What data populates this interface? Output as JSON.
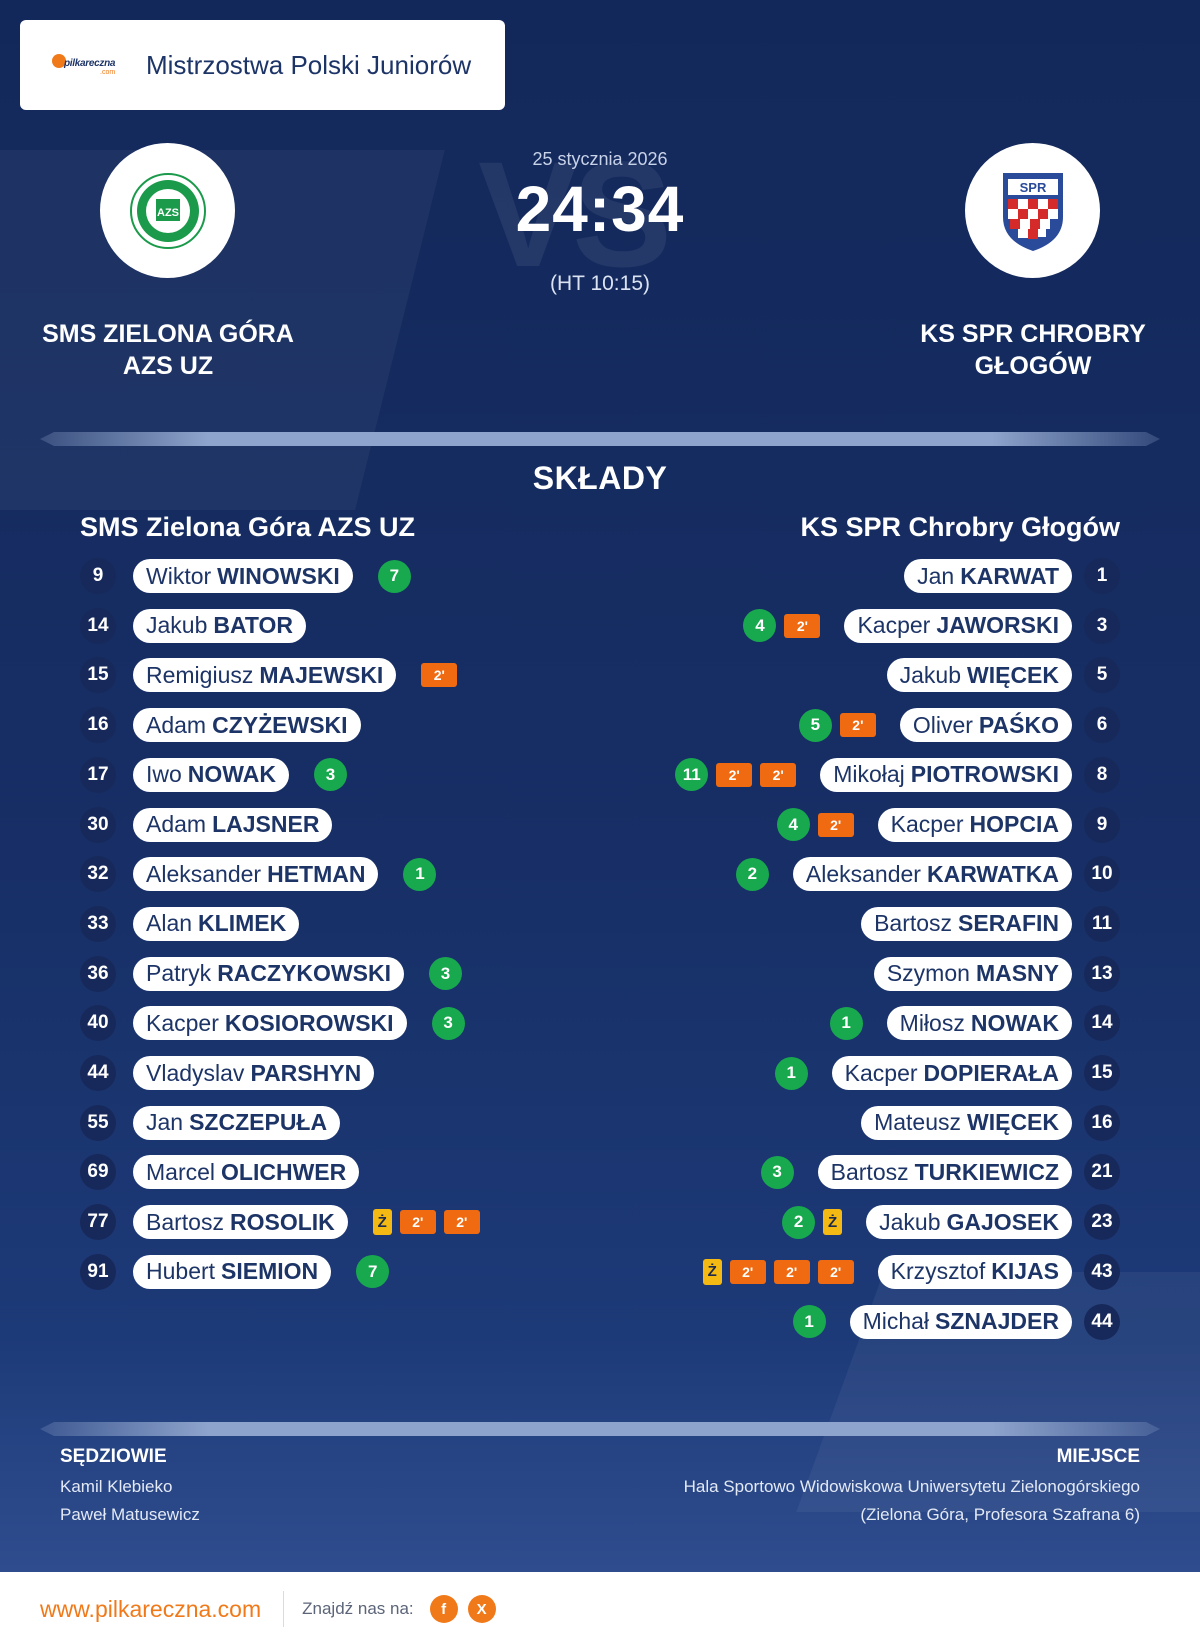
{
  "header": {
    "competition": "Mistrzostwa Polski Juniorów",
    "logo_text": "pilkareczna",
    "logo_sub": ".com"
  },
  "match": {
    "date": "25 stycznia 2026",
    "score": "24:34",
    "halftime": "(HT 10:15)",
    "vs": "VS"
  },
  "home": {
    "name_line1": "SMS ZIELONA GÓRA",
    "name_line2": "AZS UZ",
    "logo_text": "AZS",
    "roster_title": "SMS Zielona Góra AZS UZ"
  },
  "away": {
    "name_line1": "KS SPR CHROBRY",
    "name_line2": "GŁOGÓW",
    "logo_text": "SPR",
    "roster_title": "KS SPR Chrobry Głogów"
  },
  "lineups_title": "SKŁADY",
  "home_players": [
    {
      "num": "9",
      "first": "Wiktor",
      "last": "WINOWSKI",
      "goals": "7",
      "yellow": false,
      "mins": 0
    },
    {
      "num": "14",
      "first": "Jakub",
      "last": "BATOR",
      "goals": "",
      "yellow": false,
      "mins": 0
    },
    {
      "num": "15",
      "first": "Remigiusz",
      "last": "MAJEWSKI",
      "goals": "",
      "yellow": false,
      "mins": 1
    },
    {
      "num": "16",
      "first": "Adam",
      "last": "CZYŻEWSKI",
      "goals": "",
      "yellow": false,
      "mins": 0
    },
    {
      "num": "17",
      "first": "Iwo",
      "last": "NOWAK",
      "goals": "3",
      "yellow": false,
      "mins": 0
    },
    {
      "num": "30",
      "first": "Adam",
      "last": "LAJSNER",
      "goals": "",
      "yellow": false,
      "mins": 0
    },
    {
      "num": "32",
      "first": "Aleksander",
      "last": "HETMAN",
      "goals": "1",
      "yellow": false,
      "mins": 0
    },
    {
      "num": "33",
      "first": "Alan",
      "last": "KLIMEK",
      "goals": "",
      "yellow": false,
      "mins": 0
    },
    {
      "num": "36",
      "first": "Patryk",
      "last": "RACZYKOWSKI",
      "goals": "3",
      "yellow": false,
      "mins": 0
    },
    {
      "num": "40",
      "first": "Kacper",
      "last": "KOSIOROWSKI",
      "goals": "3",
      "yellow": false,
      "mins": 0
    },
    {
      "num": "44",
      "first": "Vladyslav",
      "last": "PARSHYN",
      "goals": "",
      "yellow": false,
      "mins": 0
    },
    {
      "num": "55",
      "first": "Jan",
      "last": "SZCZEPUŁA",
      "goals": "",
      "yellow": false,
      "mins": 0
    },
    {
      "num": "69",
      "first": "Marcel",
      "last": "OLICHWER",
      "goals": "",
      "yellow": false,
      "mins": 0
    },
    {
      "num": "77",
      "first": "Bartosz",
      "last": "ROSOLIK",
      "goals": "",
      "yellow": true,
      "mins": 2
    },
    {
      "num": "91",
      "first": "Hubert",
      "last": "SIEMION",
      "goals": "7",
      "yellow": false,
      "mins": 0
    }
  ],
  "away_players": [
    {
      "num": "1",
      "first": "Jan",
      "last": "KARWAT",
      "goals": "",
      "yellow": false,
      "mins": 0
    },
    {
      "num": "3",
      "first": "Kacper",
      "last": "JAWORSKI",
      "goals": "4",
      "yellow": false,
      "mins": 1
    },
    {
      "num": "5",
      "first": "Jakub",
      "last": "WIĘCEK",
      "goals": "",
      "yellow": false,
      "mins": 0
    },
    {
      "num": "6",
      "first": "Oliver",
      "last": "PAŚKO",
      "goals": "5",
      "yellow": false,
      "mins": 1
    },
    {
      "num": "8",
      "first": "Mikołaj",
      "last": "PIOTROWSKI",
      "goals": "11",
      "yellow": false,
      "mins": 2
    },
    {
      "num": "9",
      "first": "Kacper",
      "last": "HOPCIA",
      "goals": "4",
      "yellow": false,
      "mins": 1
    },
    {
      "num": "10",
      "first": "Aleksander",
      "last": "KARWATKA",
      "goals": "2",
      "yellow": false,
      "mins": 0
    },
    {
      "num": "11",
      "first": "Bartosz",
      "last": "SERAFIN",
      "goals": "",
      "yellow": false,
      "mins": 0
    },
    {
      "num": "13",
      "first": "Szymon",
      "last": "MASNY",
      "goals": "",
      "yellow": false,
      "mins": 0
    },
    {
      "num": "14",
      "first": "Miłosz",
      "last": "NOWAK",
      "goals": "1",
      "yellow": false,
      "mins": 0
    },
    {
      "num": "15",
      "first": "Kacper",
      "last": "DOPIERAŁA",
      "goals": "1",
      "yellow": false,
      "mins": 0
    },
    {
      "num": "16",
      "first": "Mateusz",
      "last": "WIĘCEK",
      "goals": "",
      "yellow": false,
      "mins": 0
    },
    {
      "num": "21",
      "first": "Bartosz",
      "last": "TURKIEWICZ",
      "goals": "3",
      "yellow": false,
      "mins": 0
    },
    {
      "num": "23",
      "first": "Jakub",
      "last": "GAJOSEK",
      "goals": "2",
      "yellow": true,
      "mins": 0
    },
    {
      "num": "43",
      "first": "Krzysztof",
      "last": "KIJAS",
      "goals": "",
      "yellow": true,
      "mins": 3
    },
    {
      "num": "44",
      "first": "Michał",
      "last": "SZNAJDER",
      "goals": "1",
      "yellow": false,
      "mins": 0
    }
  ],
  "badge_labels": {
    "two_min": "2'",
    "yellow": "Ż"
  },
  "referees": {
    "title": "SĘDZIOWIE",
    "names": [
      "Kamil Klebieko",
      "Paweł Matusewicz"
    ]
  },
  "venue": {
    "title": "MIEJSCE",
    "line1": "Hala Sportowo Widowiskowa Uniwersytetu Zielonogórskiego",
    "line2": "(Zielona Góra, Profesora Szafrana 6)"
  },
  "footer": {
    "site": "www.pilkareczna.com",
    "find_us": "Znajdź nas na:",
    "facebook": "f",
    "x": "X"
  },
  "colors": {
    "background": "#172f66",
    "goal": "#18a94e",
    "two_min": "#f06a12",
    "yellow_card": "#f5b914",
    "brand_orange": "#f07a1a"
  }
}
